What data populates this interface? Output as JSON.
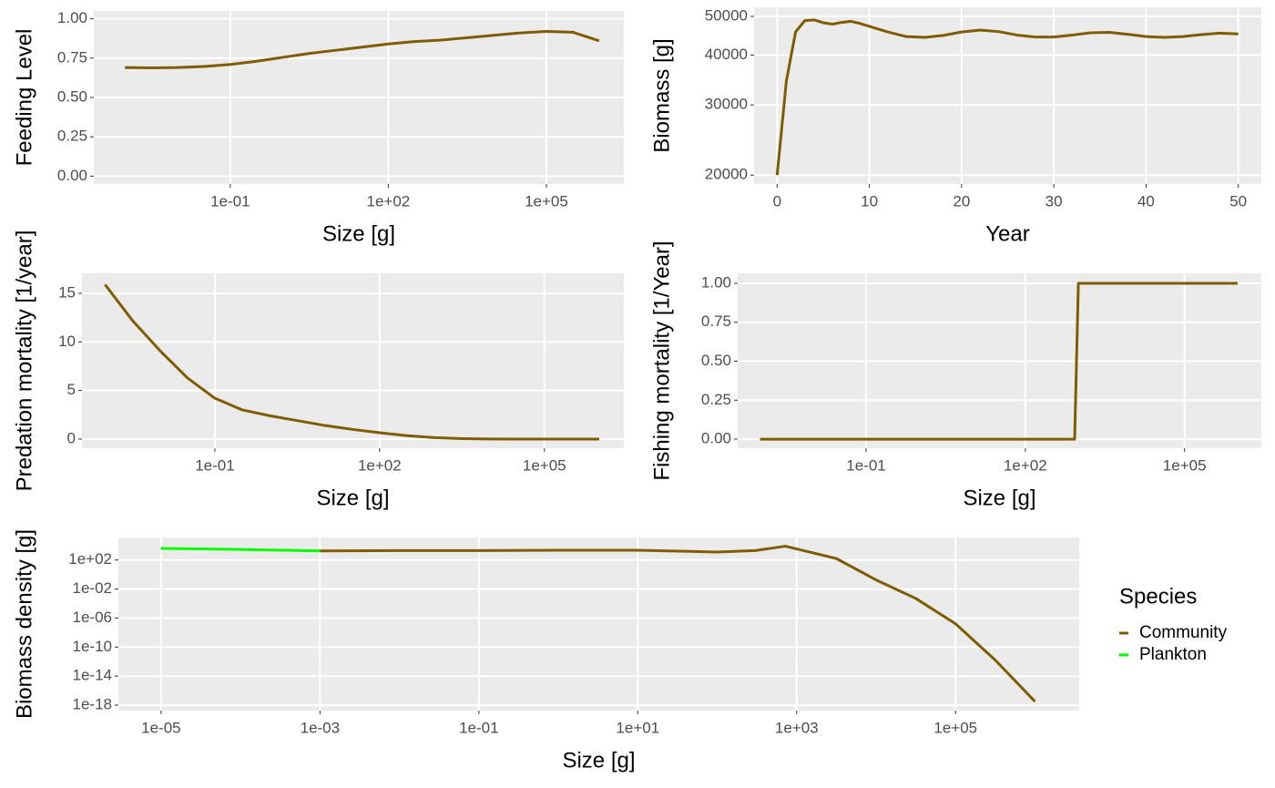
{
  "chart_data": [
    {
      "type": "line",
      "x_label": "Size [g]",
      "y_label": "Feeding Level",
      "x_log": true,
      "grid": true,
      "color": "#7f5c00",
      "x": [
        0.001,
        0.00316,
        0.01,
        0.0316,
        0.1,
        0.316,
        1,
        3.16,
        10,
        31.6,
        100,
        316,
        1000,
        3160,
        10000,
        31600,
        100000,
        316000,
        1000000
      ],
      "values": [
        0.69,
        0.688,
        0.69,
        0.697,
        0.71,
        0.73,
        0.755,
        0.78,
        0.8,
        0.82,
        0.84,
        0.855,
        0.865,
        0.88,
        0.895,
        0.91,
        0.92,
        0.915,
        0.86
      ],
      "xlim": [
        0.000257,
        2950000
      ],
      "xticks": [
        {
          "value": 0.1,
          "label": "1e-01"
        },
        {
          "value": 100,
          "label": "1e+02"
        },
        {
          "value": 100000,
          "label": "1e+05"
        }
      ],
      "ylim": [
        -0.05,
        1.05
      ],
      "yticks": [
        {
          "value": 0,
          "label": "0.00"
        },
        {
          "value": 0.25,
          "label": "0.25"
        },
        {
          "value": 0.5,
          "label": "0.50"
        },
        {
          "value": 0.75,
          "label": "0.75"
        },
        {
          "value": 1,
          "label": "1.00"
        }
      ]
    },
    {
      "type": "line",
      "x_label": "Year",
      "y_label": "Biomass [g]",
      "y_log": true,
      "grid": true,
      "color": "#7f5c00",
      "x": [
        0,
        1,
        2,
        3,
        4,
        5,
        6,
        7,
        8,
        9,
        10,
        12,
        14,
        16,
        18,
        20,
        22,
        24,
        26,
        28,
        30,
        32,
        34,
        36,
        38,
        40,
        42,
        44,
        46,
        48,
        50
      ],
      "values": [
        20000,
        34400,
        45700,
        48800,
        49000,
        48200,
        47800,
        48300,
        48600,
        48000,
        47200,
        45700,
        44500,
        44300,
        44800,
        45700,
        46200,
        45800,
        44900,
        44400,
        44400,
        44900,
        45500,
        45600,
        45100,
        44500,
        44300,
        44500,
        45000,
        45400,
        45200
      ],
      "xlim": [
        -2.5,
        52.5
      ],
      "xticks": [
        0,
        10,
        20,
        30,
        40,
        50
      ],
      "ylim": [
        19000,
        52700
      ],
      "yticks": [
        20000,
        30000,
        40000,
        50000
      ]
    },
    {
      "type": "line",
      "x_label": "Size [g]",
      "y_label": "Predation mortality [1/year]",
      "x_log": true,
      "grid": true,
      "color": "#7f5c00",
      "x": [
        0.001,
        0.00316,
        0.01,
        0.0316,
        0.1,
        0.316,
        1,
        3.16,
        10,
        31.6,
        100,
        316,
        1000,
        3160,
        10000,
        31600,
        100000,
        316000,
        1000000
      ],
      "values": [
        15.9,
        12.2,
        9.1,
        6.3,
        4.2,
        3.0,
        2.4,
        1.9,
        1.4,
        1.0,
        0.65,
        0.35,
        0.15,
        0.05,
        0.01,
        0,
        0,
        0,
        0
      ],
      "xlim": [
        0.00038,
        2800000
      ],
      "xticks": [
        {
          "value": 0.1,
          "label": "1e-01"
        },
        {
          "value": 100,
          "label": "1e+02"
        },
        {
          "value": 100000,
          "label": "1e+05"
        }
      ],
      "ylim": [
        -0.94,
        17.06
      ],
      "yticks": [
        0,
        5,
        10,
        15
      ]
    },
    {
      "type": "line",
      "x_label": "Size [g]",
      "y_label": "Fishing mortality [1/Year]",
      "x_log": true,
      "grid": true,
      "color": "#7f5c00",
      "x": [
        0.001,
        0.01,
        0.1,
        1,
        10,
        100,
        850,
        1000,
        10000,
        100000,
        1000000
      ],
      "values": [
        0,
        0,
        0,
        0,
        0,
        0,
        0,
        1,
        1,
        1,
        1
      ],
      "xlim": [
        0.00038,
        2800000
      ],
      "xticks": [
        {
          "value": 0.1,
          "label": "1e-01"
        },
        {
          "value": 100,
          "label": "1e+02"
        },
        {
          "value": 100000,
          "label": "1e+05"
        }
      ],
      "ylim": [
        -0.058,
        1.064
      ],
      "yticks": [
        {
          "value": 0,
          "label": "0.00"
        },
        {
          "value": 0.25,
          "label": "0.25"
        },
        {
          "value": 0.5,
          "label": "0.50"
        },
        {
          "value": 0.75,
          "label": "0.75"
        },
        {
          "value": 1,
          "label": "1.00"
        }
      ]
    },
    {
      "type": "line",
      "x_label": "Size [g]",
      "y_label": "Biomass density [g]",
      "x_log": true,
      "y_log": true,
      "grid": true,
      "legend_title": "Species",
      "legend": "right",
      "series": [
        {
          "name": "Community",
          "color": "#7f5c00",
          "x": [
            0.001,
            0.01,
            0.1,
            1,
            10,
            100,
            300,
            720,
            3162,
            10000,
            31623,
            100000,
            316228,
            1000000
          ],
          "values": [
            1778,
            1995,
            1995,
            2239,
            2239,
            1259,
            1995,
            7943,
            158,
            0.178,
            0.0005,
            1.6e-07,
            1.6e-12,
            3.2e-18
          ]
        },
        {
          "name": "Plankton",
          "color": "#00ff00",
          "x": [
            1e-05,
            0.0001,
            0.001
          ],
          "values": [
            3981,
            2818,
            1778
          ]
        }
      ],
      "xlim": [
        2.9e-06,
        3600000
      ],
      "xticks": [
        {
          "value": 1e-05,
          "label": "1e-05"
        },
        {
          "value": 0.001,
          "label": "1e-03"
        },
        {
          "value": 0.1,
          "label": "1e-01"
        },
        {
          "value": 10,
          "label": "1e+01"
        },
        {
          "value": 1000,
          "label": "1e+03"
        },
        {
          "value": 100000,
          "label": "1e+05"
        }
      ],
      "ylim": [
        1.8e-19,
        126000
      ],
      "yticks": [
        {
          "value": 100,
          "label": "1e+02"
        },
        {
          "value": 0.01,
          "label": "1e-02"
        },
        {
          "value": 1e-06,
          "label": "1e-06"
        },
        {
          "value": 1e-10,
          "label": "1e-10"
        },
        {
          "value": 1e-14,
          "label": "1e-14"
        },
        {
          "value": 1e-18,
          "label": "1e-18"
        }
      ]
    }
  ]
}
